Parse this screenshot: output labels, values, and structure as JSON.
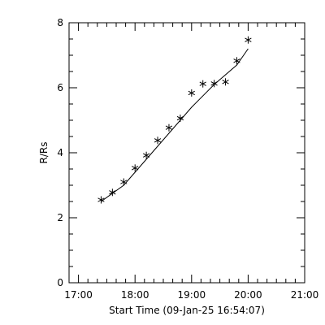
{
  "chart_data": {
    "type": "scatter",
    "xlabel": "Start Time (09-Jan-25 16:54:07)",
    "ylabel": "R/Rs",
    "x_tick_labels": [
      "17:00",
      "18:00",
      "19:00",
      "20:00",
      "21:00"
    ],
    "x_tick_values": [
      "17:00",
      "18:00",
      "19:00",
      "20:00",
      "21:00"
    ],
    "y_tick_labels": [
      "0",
      "2",
      "4",
      "6",
      "8"
    ],
    "y_tick_values": [
      0,
      2,
      4,
      6,
      8
    ],
    "xlim": [
      "16:50",
      "21:00"
    ],
    "ylim": [
      0,
      8
    ],
    "marker": "asterisk",
    "grid": false,
    "colors": {
      "axes": "#000000",
      "marks": "#000000",
      "background": "#ffffff"
    },
    "points": [
      {
        "x": "17:24",
        "y": 2.55
      },
      {
        "x": "17:36",
        "y": 2.78
      },
      {
        "x": "17:48",
        "y": 3.1
      },
      {
        "x": "18:00",
        "y": 3.53
      },
      {
        "x": "18:12",
        "y": 3.92
      },
      {
        "x": "18:24",
        "y": 4.38
      },
      {
        "x": "18:36",
        "y": 4.77
      },
      {
        "x": "18:48",
        "y": 5.06
      },
      {
        "x": "19:00",
        "y": 5.84
      },
      {
        "x": "19:12",
        "y": 6.12
      },
      {
        "x": "19:24",
        "y": 6.13
      },
      {
        "x": "19:36",
        "y": 6.18
      },
      {
        "x": "19:48",
        "y": 6.83
      },
      {
        "x": "20:00",
        "y": 7.47
      }
    ],
    "fit_line": [
      {
        "x": "17:24",
        "y": 2.5
      },
      {
        "x": "17:48",
        "y": 3.0
      },
      {
        "x": "18:12",
        "y": 3.8
      },
      {
        "x": "18:36",
        "y": 4.6
      },
      {
        "x": "19:00",
        "y": 5.4
      },
      {
        "x": "19:24",
        "y": 6.1
      },
      {
        "x": "19:48",
        "y": 6.7
      },
      {
        "x": "20:00",
        "y": 7.2
      }
    ]
  }
}
